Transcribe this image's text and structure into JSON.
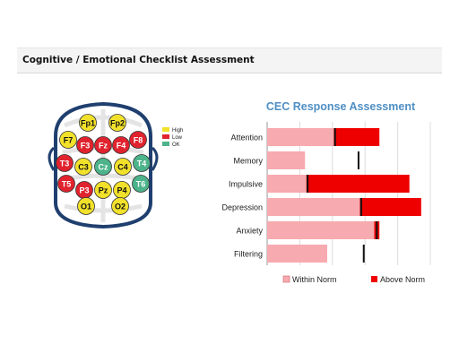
{
  "panel": {
    "title": "Cognitive / Emotional Checklist Assessment"
  },
  "brain_map": {
    "key": [
      {
        "label": "High",
        "color": "#f2e12b"
      },
      {
        "label": "Low",
        "color": "#e0232e"
      },
      {
        "label": "OK",
        "color": "#4cb38b"
      }
    ],
    "electrodes": [
      {
        "label": "Fp1",
        "status": "High"
      },
      {
        "label": "Fp2",
        "status": "High"
      },
      {
        "label": "F7",
        "status": "High"
      },
      {
        "label": "F3",
        "status": "Low"
      },
      {
        "label": "Fz",
        "status": "Low"
      },
      {
        "label": "F4",
        "status": "Low"
      },
      {
        "label": "F8",
        "status": "Low"
      },
      {
        "label": "T3",
        "status": "Low"
      },
      {
        "label": "C3",
        "status": "High"
      },
      {
        "label": "Cz",
        "status": "OK"
      },
      {
        "label": "C4",
        "status": "High"
      },
      {
        "label": "T4",
        "status": "OK"
      },
      {
        "label": "T5",
        "status": "Low"
      },
      {
        "label": "P3",
        "status": "Low"
      },
      {
        "label": "Pz",
        "status": "High"
      },
      {
        "label": "P4",
        "status": "High"
      },
      {
        "label": "T6",
        "status": "OK"
      },
      {
        "label": "O1",
        "status": "High"
      },
      {
        "label": "O2",
        "status": "High"
      }
    ]
  },
  "chart_data": {
    "type": "bar",
    "stacked": true,
    "orientation": "horizontal",
    "title": "CEC Response Assessment",
    "categories": [
      "Attention",
      "Memory",
      "Impulsive",
      "Depression",
      "Anxiety",
      "Filtering"
    ],
    "series": [
      {
        "name": "Within Norm",
        "color": "#f7aab0",
        "values": [
          51,
          29,
          30,
          71,
          82,
          46
        ]
      },
      {
        "name": "Above Norm",
        "color": "#ee0000",
        "values": [
          35,
          0,
          79,
          47,
          4,
          0
        ]
      }
    ],
    "norm_markers": [
      52,
      70,
      31,
      72,
      84,
      74
    ],
    "xlim": [
      0,
      125
    ],
    "grid": true,
    "legend_position": "bottom"
  }
}
